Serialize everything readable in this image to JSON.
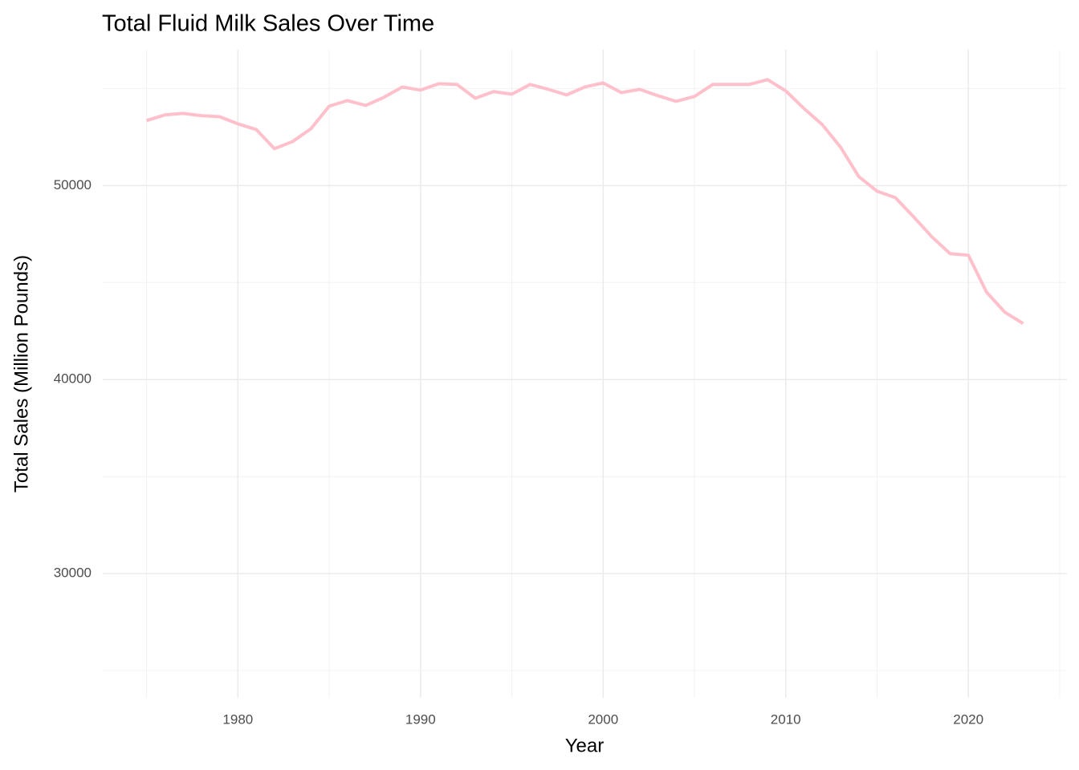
{
  "chart_data": {
    "type": "line",
    "title": "Total Fluid Milk Sales Over Time",
    "x_label": "Year",
    "y_label": "Total Sales (Million Pounds)",
    "x": [
      1975,
      1976,
      1977,
      1978,
      1979,
      1980,
      1981,
      1982,
      1983,
      1984,
      1985,
      1986,
      1987,
      1988,
      1989,
      1990,
      1991,
      1992,
      1993,
      1994,
      1995,
      1996,
      1997,
      1998,
      1999,
      2000,
      2001,
      2002,
      2003,
      2004,
      2005,
      2006,
      2007,
      2008,
      2009,
      2010,
      2011,
      2012,
      2013,
      2014,
      2015,
      2016,
      2017,
      2018,
      2019,
      2020,
      2021,
      2022,
      2023
    ],
    "series": [
      {
        "name": "Total Sales",
        "color": "#ffc0cb",
        "values": [
          53350,
          53640,
          53720,
          53600,
          53550,
          53180,
          52890,
          51900,
          52270,
          52930,
          54090,
          54380,
          54130,
          54550,
          55080,
          54920,
          55250,
          55210,
          54500,
          54840,
          54710,
          55210,
          54960,
          54670,
          55080,
          55290,
          54790,
          54960,
          54630,
          54340,
          54590,
          55210,
          55210,
          55210,
          55460,
          54880,
          53970,
          53140,
          51980,
          50460,
          49710,
          49380,
          48390,
          47360,
          46490,
          46410,
          44500,
          43470,
          42890
        ]
      }
    ],
    "xlim": [
      1972.6,
      2025.4
    ],
    "xticks": [
      1980,
      1990,
      2000,
      2010,
      2020
    ],
    "x_minor_ticks": [
      1975,
      1985,
      1995,
      2005,
      2015,
      2025
    ],
    "ylim": [
      23600,
      57000
    ],
    "yticks": [
      30000,
      40000,
      50000
    ],
    "y_minor_ticks": [
      25000,
      35000,
      45000,
      55000
    ],
    "grid": true
  }
}
